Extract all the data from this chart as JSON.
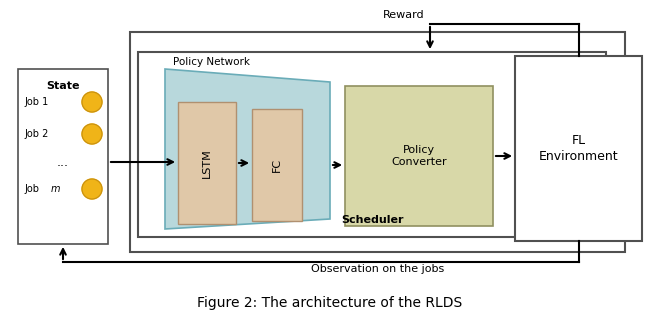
{
  "title": "Figure 2: The architecture of the RLDS",
  "background_color": "#ffffff",
  "state_label": "State",
  "jobs": [
    "Job 1",
    "Job 2",
    "Job m"
  ],
  "reward_label": "Reward",
  "observation_label": "Observation on the jobs",
  "scheduler_label": "Scheduler",
  "policy_network_label": "Policy Network",
  "lstm_label": "LSTM",
  "fc_label": "FC",
  "policy_converter_label": "Policy\nConverter",
  "fl_env_label": "FL\nEnvironment",
  "circle_fill": "#f0b418",
  "circle_edge": "#c89010",
  "trap_fill": "#b8d8dc",
  "trap_edge": "#6aacb8",
  "lstm_fill": "#e0c8a8",
  "lstm_edge": "#b09070",
  "fc_fill": "#e0c8a8",
  "fc_edge": "#b09070",
  "pc_fill": "#d8d8a8",
  "pc_edge": "#909060",
  "box_edge": "#505050",
  "arrow_color": "#000000"
}
